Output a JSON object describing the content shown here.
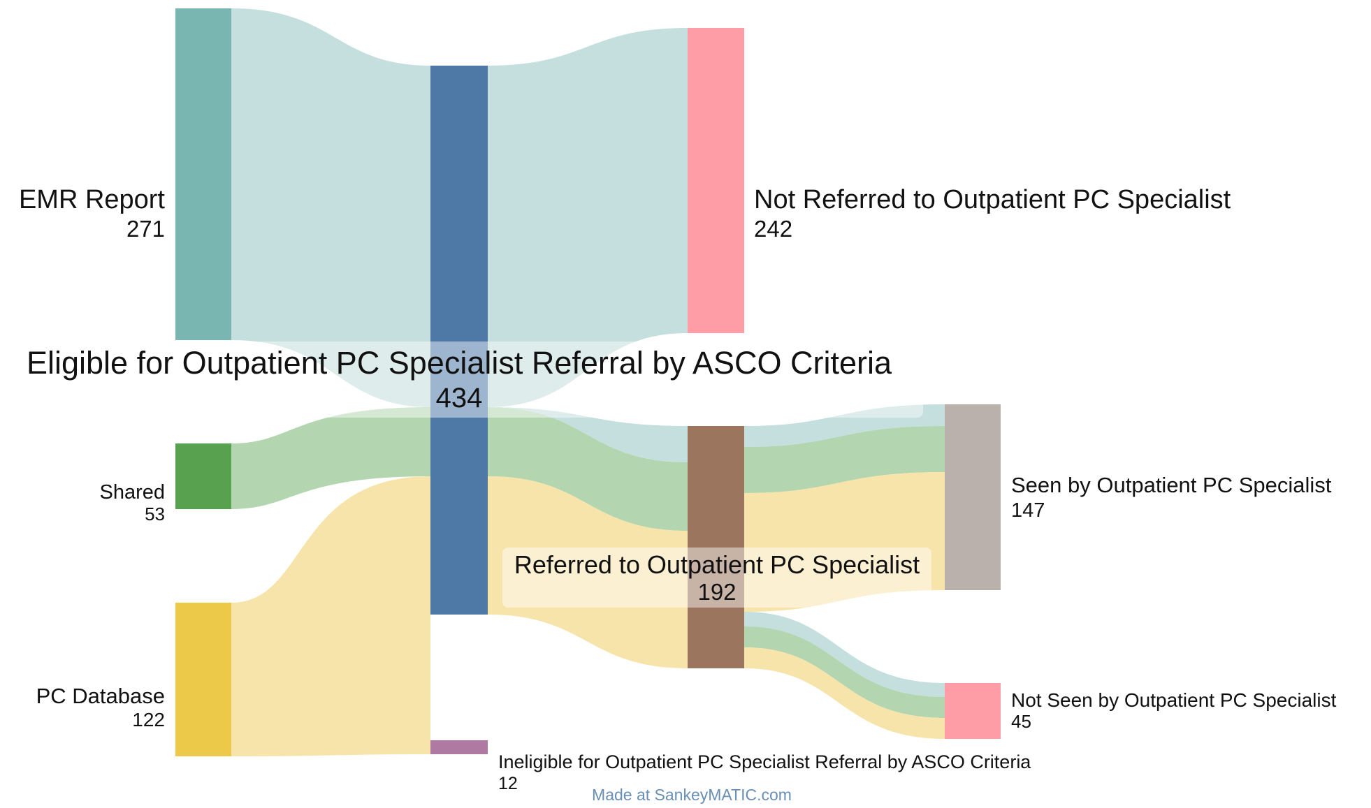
{
  "diagram": {
    "type": "sankey",
    "nodes": [
      {
        "id": "emr",
        "label": "EMR Report",
        "value": "271",
        "color": "#79b6b1"
      },
      {
        "id": "shared",
        "label": "Shared",
        "value": "53",
        "color": "#58a14e"
      },
      {
        "id": "pcdb",
        "label": "PC Database",
        "value": "122",
        "color": "#edc949"
      },
      {
        "id": "eligible",
        "label": "Eligible for Outpatient PC Specialist Referral by ASCO Criteria",
        "value": "434",
        "color": "#4e79a7"
      },
      {
        "id": "ineligible",
        "label": "Ineligible for Outpatient PC Specialist Referral by ASCO Criteria",
        "value": "12",
        "color": "#af7aa1"
      },
      {
        "id": "notref",
        "label": "Not Referred to Outpatient PC Specialist",
        "value": "242",
        "color": "#ff9da7"
      },
      {
        "id": "ref",
        "label": "Referred to Outpatient PC Specialist",
        "value": "192",
        "color": "#9c755f"
      },
      {
        "id": "seen",
        "label": "Seen by Outpatient PC Specialist",
        "value": "147",
        "color": "#bab0ac"
      },
      {
        "id": "notseen",
        "label": "Not Seen by Outpatient PC Specialist",
        "value": "45",
        "color": "#ff9da7"
      }
    ],
    "flows": [
      {
        "from": "emr",
        "to": "eligible",
        "value": 271,
        "color": "#c4dfdd"
      },
      {
        "from": "shared",
        "to": "eligible",
        "value": 53,
        "color": "#b3d5b0"
      },
      {
        "from": "pcdb",
        "to": "eligible",
        "value": 110,
        "color": "#f7e4ab"
      },
      {
        "from": "pcdb",
        "to": "ineligible",
        "value": 12,
        "color": "#f7e4ab"
      },
      {
        "from": "eligible",
        "to": "notref",
        "value": 242,
        "color": "#c4dfdd"
      },
      {
        "from": "eligible",
        "to": "ref",
        "value": 192,
        "color": "#c4dfdd"
      },
      {
        "from": "ref",
        "to": "seen",
        "value": 147,
        "color": "#f7e4ab"
      },
      {
        "from": "ref",
        "to": "notseen",
        "value": 45,
        "color": "#c4dfdd"
      }
    ],
    "credit": "Made at SankeyMATIC.com"
  }
}
